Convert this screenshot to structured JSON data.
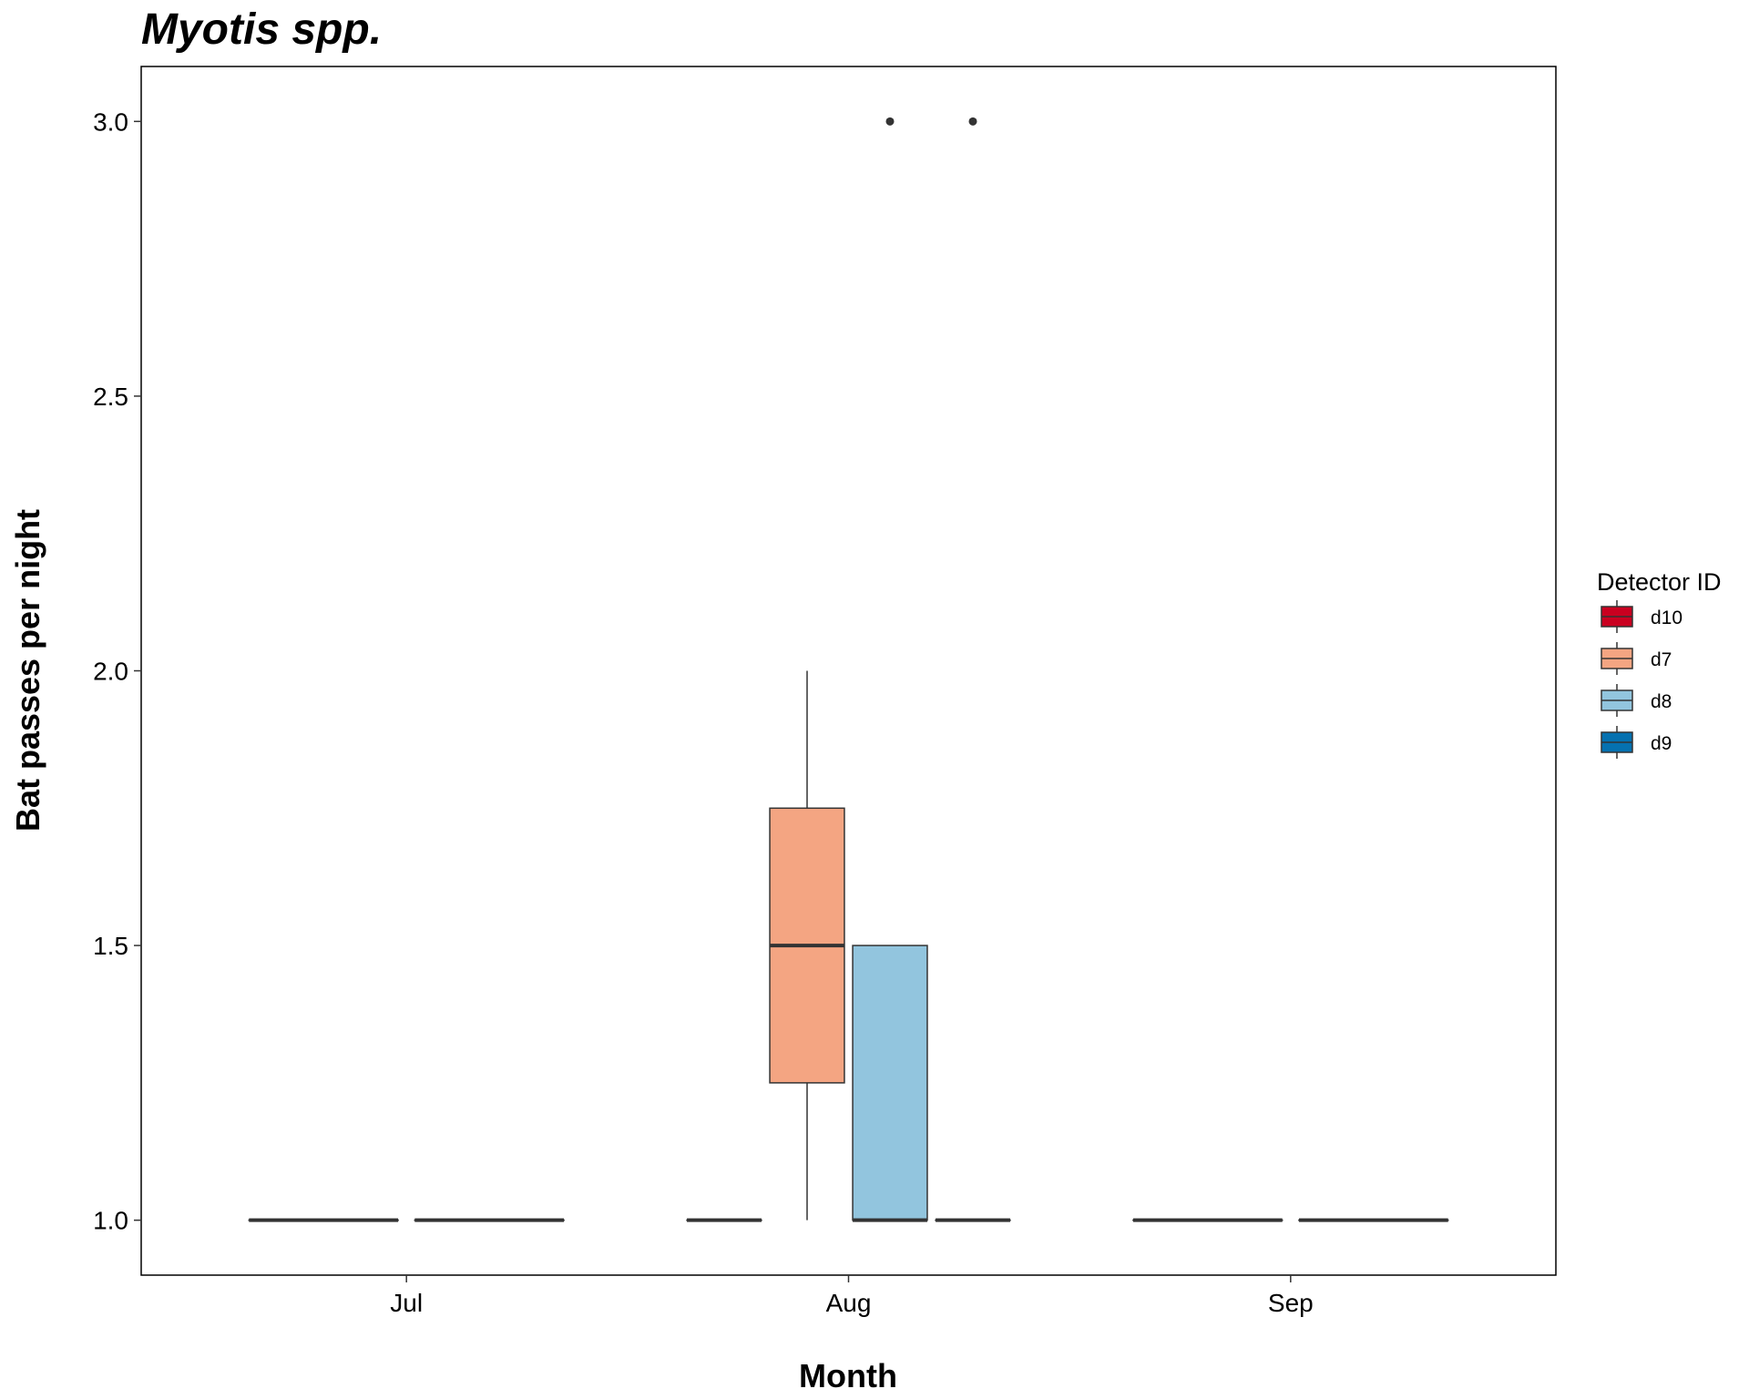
{
  "chart_data": {
    "type": "box",
    "title": "Myotis spp.",
    "xlabel": "Month",
    "ylabel": "Bat passes per night",
    "categories": [
      "Jul",
      "Aug",
      "Sep"
    ],
    "ylim": [
      0.9,
      3.1
    ],
    "yticks": [
      "1.0",
      "1.5",
      "2.0",
      "2.5",
      "3.0"
    ],
    "legend": {
      "title": "Detector ID",
      "position": "right",
      "items": [
        {
          "label": "d10",
          "color": "#ca0020"
        },
        {
          "label": "d7",
          "color": "#f4a582"
        },
        {
          "label": "d8",
          "color": "#92c5de"
        },
        {
          "label": "d9",
          "color": "#0571b0"
        }
      ]
    },
    "boxes": [
      {
        "month": "Jul",
        "detector": "d7",
        "min": 1.0,
        "q1": 1.0,
        "median": 1.0,
        "q3": 1.0,
        "max": 1.0,
        "outliers": []
      },
      {
        "month": "Jul",
        "detector": "d8",
        "min": 1.0,
        "q1": 1.0,
        "median": 1.0,
        "q3": 1.0,
        "max": 1.0,
        "outliers": []
      },
      {
        "month": "Aug",
        "detector": "d10",
        "min": 1.0,
        "q1": 1.0,
        "median": 1.0,
        "q3": 1.0,
        "max": 1.0,
        "outliers": []
      },
      {
        "month": "Aug",
        "detector": "d7",
        "min": 1.0,
        "q1": 1.25,
        "median": 1.5,
        "q3": 1.75,
        "max": 2.0,
        "outliers": []
      },
      {
        "month": "Aug",
        "detector": "d8",
        "min": 1.0,
        "q1": 1.0,
        "median": 1.0,
        "q3": 1.5,
        "max": 1.5,
        "outliers": [
          3.0
        ]
      },
      {
        "month": "Aug",
        "detector": "d9",
        "min": 1.0,
        "q1": 1.0,
        "median": 1.0,
        "q3": 1.0,
        "max": 1.0,
        "outliers": [
          3.0
        ]
      },
      {
        "month": "Sep",
        "detector": "d7",
        "min": 1.0,
        "q1": 1.0,
        "median": 1.0,
        "q3": 1.0,
        "max": 1.0,
        "outliers": []
      },
      {
        "month": "Sep",
        "detector": "d8",
        "min": 1.0,
        "q1": 1.0,
        "median": 1.0,
        "q3": 1.0,
        "max": 1.0,
        "outliers": []
      }
    ],
    "grid": false
  }
}
